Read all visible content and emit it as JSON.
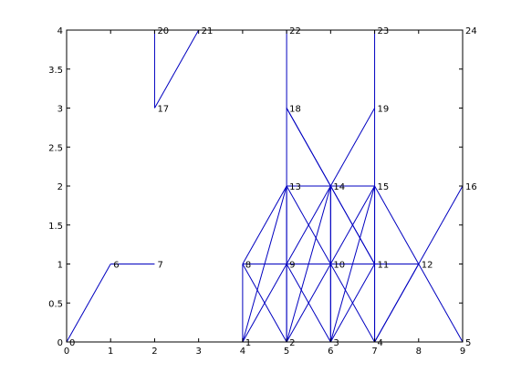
{
  "chart_data": {
    "type": "line",
    "title": "",
    "xlabel": "",
    "ylabel": "",
    "xlim": [
      0,
      9
    ],
    "ylim": [
      0,
      4
    ],
    "x_ticks": [
      "0",
      "1",
      "2",
      "3",
      "4",
      "5",
      "6",
      "7",
      "8",
      "9"
    ],
    "y_ticks": [
      "0",
      "0.5",
      "1",
      "1.5",
      "2",
      "2.5",
      "3",
      "3.5",
      "4"
    ],
    "grid": false,
    "line_color": "#0000c0",
    "nodes": [
      {
        "id": "0",
        "x": 0,
        "y": 0
      },
      {
        "id": "1",
        "x": 4,
        "y": 0
      },
      {
        "id": "2",
        "x": 5,
        "y": 0
      },
      {
        "id": "3",
        "x": 6,
        "y": 0
      },
      {
        "id": "4",
        "x": 7,
        "y": 0
      },
      {
        "id": "5",
        "x": 9,
        "y": 0
      },
      {
        "id": "6",
        "x": 1,
        "y": 1
      },
      {
        "id": "7",
        "x": 2,
        "y": 1
      },
      {
        "id": "8",
        "x": 4,
        "y": 1
      },
      {
        "id": "9",
        "x": 5,
        "y": 1
      },
      {
        "id": "10",
        "x": 6,
        "y": 1
      },
      {
        "id": "11",
        "x": 7,
        "y": 1
      },
      {
        "id": "12",
        "x": 8,
        "y": 1
      },
      {
        "id": "13",
        "x": 5,
        "y": 2
      },
      {
        "id": "14",
        "x": 6,
        "y": 2
      },
      {
        "id": "15",
        "x": 7,
        "y": 2
      },
      {
        "id": "16",
        "x": 9,
        "y": 2
      },
      {
        "id": "17",
        "x": 2,
        "y": 3
      },
      {
        "id": "18",
        "x": 5,
        "y": 3
      },
      {
        "id": "19",
        "x": 7,
        "y": 3
      },
      {
        "id": "20",
        "x": 2,
        "y": 4
      },
      {
        "id": "21",
        "x": 3,
        "y": 4
      },
      {
        "id": "22",
        "x": 5,
        "y": 4
      },
      {
        "id": "23",
        "x": 7,
        "y": 4
      },
      {
        "id": "24",
        "x": 9,
        "y": 4
      }
    ],
    "edges": [
      [
        0,
        6
      ],
      [
        6,
        7
      ],
      [
        1,
        8
      ],
      [
        1,
        9
      ],
      [
        1,
        13
      ],
      [
        8,
        9
      ],
      [
        8,
        2
      ],
      [
        8,
        13
      ],
      [
        2,
        9
      ],
      [
        2,
        13
      ],
      [
        2,
        10
      ],
      [
        2,
        14
      ],
      [
        9,
        10
      ],
      [
        9,
        13
      ],
      [
        9,
        14
      ],
      [
        9,
        3
      ],
      [
        3,
        10
      ],
      [
        3,
        14
      ],
      [
        3,
        11
      ],
      [
        3,
        15
      ],
      [
        10,
        11
      ],
      [
        10,
        13
      ],
      [
        10,
        14
      ],
      [
        10,
        15
      ],
      [
        10,
        4
      ],
      [
        4,
        11
      ],
      [
        4,
        15
      ],
      [
        4,
        12
      ],
      [
        4,
        16
      ],
      [
        11,
        12
      ],
      [
        11,
        14
      ],
      [
        11,
        15
      ],
      [
        12,
        15
      ],
      [
        12,
        5
      ],
      [
        13,
        14
      ],
      [
        13,
        22
      ],
      [
        14,
        15
      ],
      [
        14,
        18
      ],
      [
        14,
        19
      ],
      [
        15,
        23
      ],
      [
        18,
        11
      ],
      [
        17,
        20
      ],
      [
        17,
        21
      ]
    ]
  }
}
